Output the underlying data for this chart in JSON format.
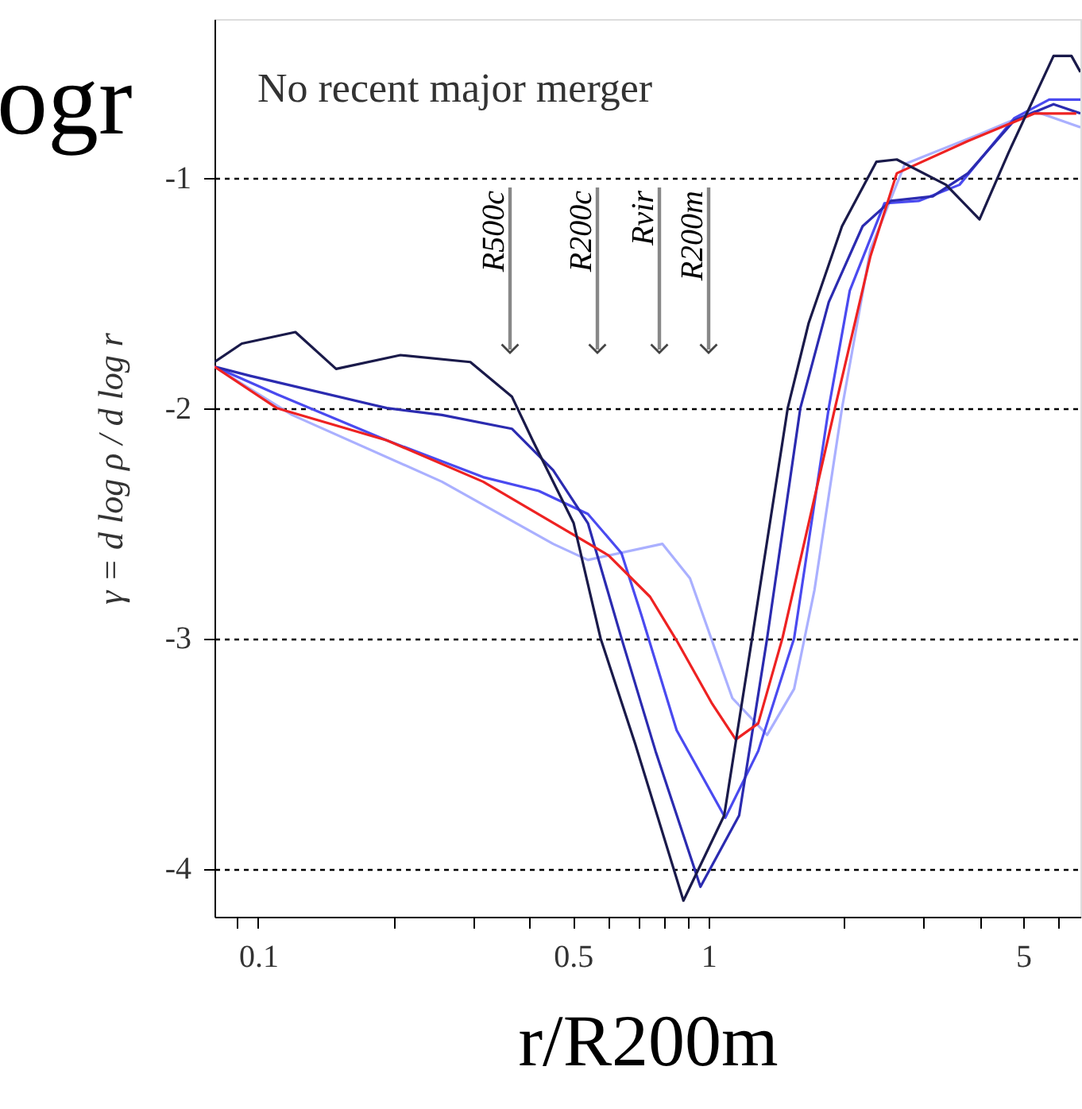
{
  "chart_data": {
    "type": "line",
    "xlabel": "r/R200m",
    "ylabel": "γ = d log ρ / d log r",
    "log": "x",
    "grid": "y",
    "marker": "none",
    "line_style": "solid",
    "xlim": [
      0.08,
      6.7
    ],
    "ylim": [
      -4.21,
      -0.31
    ],
    "xticks": [
      {
        "value": 0.09,
        "label": null
      },
      0.1,
      {
        "value": 0.2,
        "label": null
      },
      {
        "value": 0.3,
        "label": null
      },
      {
        "value": 0.4,
        "label": null
      },
      0.5,
      {
        "value": 0.6,
        "label": null
      },
      {
        "value": 0.7,
        "label": null
      },
      {
        "value": 0.8,
        "label": null
      },
      {
        "value": 0.9,
        "label": null
      },
      1,
      {
        "value": 2,
        "label": null
      },
      {
        "value": 3,
        "label": null
      },
      {
        "value": 4,
        "label": null
      },
      5,
      {
        "value": 6,
        "label": null
      }
    ],
    "yticks": [
      -1,
      -2,
      -3,
      -4
    ],
    "annotations": [
      "No recent major merger",
      "R500c",
      "R200c",
      "Rvir",
      "R200m",
      "ogr"
    ],
    "series": [
      {
        "color": "#aab0ff",
        "x": [
          0.08,
          0.119,
          0.256,
          0.452,
          0.54,
          0.79,
          0.91,
          1.13,
          1.35,
          1.55,
          1.72,
          1.98,
          2.29,
          2.73,
          4.0,
          5.3,
          6.7
        ],
        "values": [
          -1.82,
          -2.03,
          -2.32,
          -2.59,
          -2.66,
          -2.59,
          -2.74,
          -3.26,
          -3.42,
          -3.22,
          -2.79,
          -2.0,
          -1.31,
          -0.94,
          -0.81,
          -0.71,
          -0.78
        ]
      },
      {
        "color": "#4a4af0",
        "x": [
          0.08,
          0.11,
          0.193,
          0.316,
          0.42,
          0.54,
          0.641,
          0.71,
          0.85,
          1.09,
          1.29,
          1.55,
          1.85,
          2.06,
          2.46,
          2.93,
          3.61,
          4.78,
          5.71,
          6.7
        ],
        "values": [
          -1.82,
          -1.94,
          -2.14,
          -2.3,
          -2.36,
          -2.46,
          -2.63,
          -2.9,
          -3.4,
          -3.78,
          -3.49,
          -3.0,
          -2.0,
          -1.49,
          -1.11,
          -1.1,
          -1.03,
          -0.74,
          -0.66,
          -0.66
        ]
      },
      {
        "color": "#2b2bb0",
        "x": [
          0.08,
          0.096,
          0.193,
          0.256,
          0.366,
          0.452,
          0.54,
          0.641,
          0.763,
          0.96,
          1.17,
          1.35,
          1.6,
          1.85,
          2.2,
          2.54,
          3.15,
          3.77,
          4.78,
          5.84,
          6.7
        ],
        "values": [
          -1.82,
          -1.86,
          -2.0,
          -2.03,
          -2.09,
          -2.27,
          -2.5,
          -3.0,
          -3.49,
          -4.08,
          -3.77,
          -3.0,
          -2.0,
          -1.54,
          -1.21,
          -1.1,
          -1.08,
          -0.98,
          -0.75,
          -0.68,
          -0.72
        ]
      },
      {
        "color": "#ee2222",
        "x": [
          0.08,
          0.11,
          0.193,
          0.316,
          0.6,
          0.742,
          0.85,
          1.016,
          1.15,
          1.29,
          1.46,
          1.91,
          2.29,
          2.62,
          3.77,
          5.3,
          6.56
        ],
        "values": [
          -1.82,
          -2.0,
          -2.14,
          -2.32,
          -2.64,
          -2.82,
          -3.01,
          -3.28,
          -3.44,
          -3.37,
          -3.0,
          -2.0,
          -1.34,
          -0.98,
          -0.84,
          -0.72,
          -0.72
        ]
      },
      {
        "color": "#1a1a4a",
        "x": [
          0.08,
          0.092,
          0.121,
          0.149,
          0.207,
          0.296,
          0.366,
          0.407,
          0.502,
          0.576,
          0.688,
          0.88,
          1.084,
          1.25,
          1.5,
          1.67,
          1.98,
          2.36,
          2.62,
          3.37,
          4.0,
          4.64,
          5.84,
          6.4,
          6.7
        ],
        "values": [
          -1.8,
          -1.72,
          -1.67,
          -1.83,
          -1.77,
          -1.8,
          -1.95,
          -2.14,
          -2.5,
          -3.0,
          -3.46,
          -4.14,
          -3.77,
          -3.0,
          -2.0,
          -1.63,
          -1.21,
          -0.93,
          -0.92,
          -1.03,
          -1.18,
          -0.89,
          -0.47,
          -0.47,
          -0.54
        ]
      }
    ]
  }
}
